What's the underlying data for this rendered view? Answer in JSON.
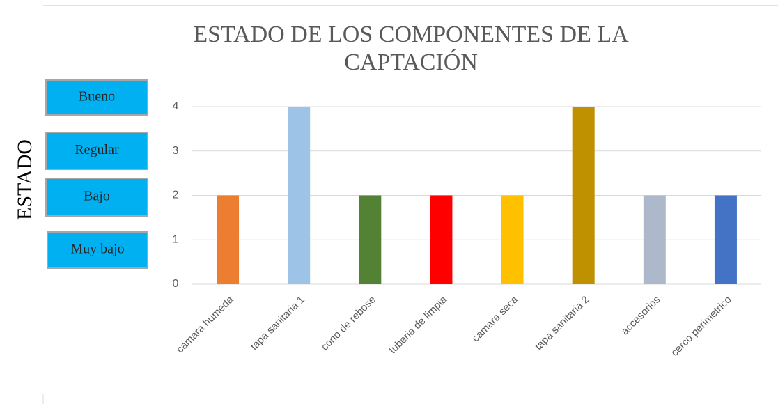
{
  "chart_data": {
    "type": "bar",
    "title": "ESTADO DE LOS COMPONENTES DE LA CAPTACIÓN",
    "ylabel": "ESTADO",
    "annotations": [
      "Bueno",
      "Regular",
      "Bajo",
      "Muy bajo"
    ],
    "categories": [
      "camara humeda",
      "tapa sanitaria 1",
      "cono de rebose",
      "tuberia de limpia",
      "camara seca",
      "tapa sanitaria 2",
      "accesorios",
      "cerco perimetrico"
    ],
    "values": [
      2,
      4,
      2,
      2,
      2,
      4,
      2,
      2
    ],
    "colors": [
      "#ed7d31",
      "#9dc3e6",
      "#548235",
      "#ff0000",
      "#ffc000",
      "#bf9000",
      "#adb9ca",
      "#4472c4"
    ],
    "ylim": [
      0,
      4
    ],
    "yticks": [
      0,
      1,
      2,
      3,
      4
    ],
    "grid": true
  }
}
